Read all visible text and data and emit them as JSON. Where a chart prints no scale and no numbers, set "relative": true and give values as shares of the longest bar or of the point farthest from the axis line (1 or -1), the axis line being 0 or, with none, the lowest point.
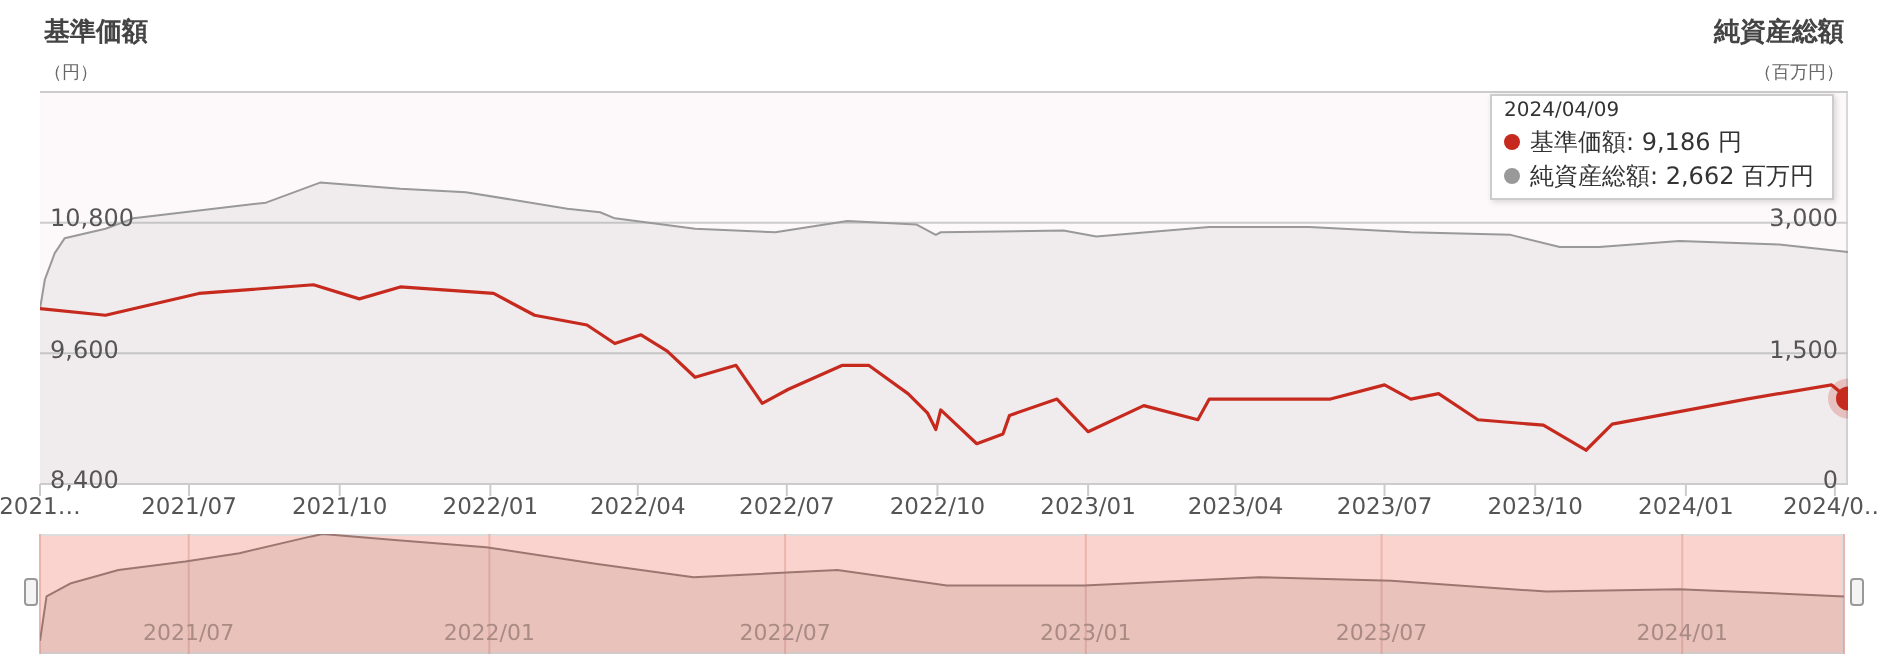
{
  "chart_data": [
    {
      "type": "line",
      "ylabel": "基準価額（円）",
      "y2label": "純資産総額（百万円）",
      "xlim": [
        "2021-04-01",
        "2024-04-09"
      ],
      "xticks": [
        {
          "value": "2021-04-01",
          "label": "2021…"
        },
        {
          "value": "2021-07-01",
          "label": "2021/07"
        },
        {
          "value": "2021-10-01",
          "label": "2021/10"
        },
        {
          "value": "2022-01-01",
          "label": "2022/01"
        },
        {
          "value": "2022-04-01",
          "label": "2022/04"
        },
        {
          "value": "2022-07-01",
          "label": "2022/07"
        },
        {
          "value": "2022-10-01",
          "label": "2022/10"
        },
        {
          "value": "2023-01-01",
          "label": "2023/01"
        },
        {
          "value": "2023-04-01",
          "label": "2023/04"
        },
        {
          "value": "2023-07-01",
          "label": "2023/07"
        },
        {
          "value": "2023-10-01",
          "label": "2023/10"
        },
        {
          "value": "2024-01-01",
          "label": "2024/01"
        },
        {
          "value": "2024-04-01",
          "label": "2024/0…"
        }
      ],
      "ylim": [
        8400,
        12000
      ],
      "yticks": [
        {
          "value": 8400,
          "label": "8,400"
        },
        {
          "value": 9600,
          "label": "9,600"
        },
        {
          "value": 10800,
          "label": "10,800"
        },
        {
          "value": 12000,
          "label": null
        }
      ],
      "y2lim": [
        0,
        4500
      ],
      "y2ticks": [
        {
          "value": 0,
          "label": "0"
        },
        {
          "value": 1500,
          "label": "1,500"
        },
        {
          "value": 3000,
          "label": "3,000"
        },
        {
          "value": 4500,
          "label": null
        }
      ],
      "grid": "y",
      "annotations": [
        "2024/04/09",
        "基準価額: 9,186 円",
        "純資産総額: 2,662 百万円"
      ],
      "series": [
        {
          "color": "#c62a1e",
          "x": [
            "2021-04-01",
            "2021-05-11",
            "2021-07-07",
            "2021-09-15",
            "2021-10-13",
            "2021-11-07",
            "2022-01-03",
            "2022-01-28",
            "2022-03-01",
            "2022-03-18",
            "2022-04-03",
            "2022-04-19",
            "2022-05-06",
            "2022-05-31",
            "2022-06-16",
            "2022-07-02",
            "2022-08-04",
            "2022-08-20",
            "2022-09-13",
            "2022-09-25",
            "2022-09-30",
            "2022-10-03",
            "2022-10-25",
            "2022-11-10",
            "2022-11-14",
            "2022-12-13",
            "2023-01-01",
            "2023-02-04",
            "2023-03-09",
            "2023-03-16",
            "2023-04-27",
            "2023-05-29",
            "2023-07-01",
            "2023-07-17",
            "2023-08-03",
            "2023-08-27",
            "2023-10-06",
            "2023-11-01",
            "2023-11-17",
            "2024-02-07",
            "2024-03-30",
            "2024-04-09"
          ],
          "values": [
            10010,
            9950,
            10150,
            10230,
            10100,
            10210,
            10150,
            9950,
            9860,
            9690,
            9770,
            9620,
            9380,
            9490,
            9140,
            9270,
            9490,
            9490,
            9230,
            9050,
            8900,
            9080,
            8770,
            8860,
            9030,
            9180,
            8880,
            9120,
            8990,
            9180,
            9180,
            9180,
            9310,
            9180,
            9230,
            8990,
            8940,
            8710,
            8950,
            9180,
            9310,
            9186
          ]
        },
        {
          "type": "area",
          "axis": "y2",
          "color": "#999999",
          "x": [
            "2021-04-01",
            "2021-04-04",
            "2021-04-10",
            "2021-04-16",
            "2021-05-11",
            "2021-05-28",
            "2021-08-17",
            "2021-09-19",
            "2021-11-07",
            "2021-12-17",
            "2022-02-17",
            "2022-03-09",
            "2022-03-18",
            "2022-05-06",
            "2022-06-24",
            "2022-08-07",
            "2022-09-18",
            "2022-09-30",
            "2022-10-03",
            "2022-12-17",
            "2023-01-06",
            "2023-03-16",
            "2023-05-16",
            "2023-07-17",
            "2023-09-16",
            "2023-10-16",
            "2023-11-09",
            "2023-12-28",
            "2024-02-27",
            "2024-04-09"
          ],
          "values": [
            2010,
            2350,
            2650,
            2820,
            2930,
            3050,
            3230,
            3460,
            3390,
            3350,
            3160,
            3120,
            3050,
            2930,
            2890,
            3020,
            2980,
            2860,
            2890,
            2910,
            2840,
            2950,
            2950,
            2890,
            2860,
            2720,
            2720,
            2790,
            2750,
            2662
          ]
        }
      ]
    },
    {
      "type": "area",
      "relative": true,
      "tick_labels": "x",
      "grid": "x",
      "xlim": [
        "2021-04-01",
        "2024-04-09"
      ],
      "xticks": [
        {
          "value": "2021-07-01",
          "label": "2021/07"
        },
        {
          "value": "2022-01-01",
          "label": "2022/01"
        },
        {
          "value": "2022-07-01",
          "label": "2022/07"
        },
        {
          "value": "2023-01-01",
          "label": "2023/01"
        },
        {
          "value": "2023-07-01",
          "label": "2023/07"
        },
        {
          "value": "2024-01-01",
          "label": "2024/01"
        }
      ],
      "series": [
        {
          "color": "#9c7670",
          "x": [
            "2021-04-01",
            "2021-04-05",
            "2021-04-20",
            "2021-05-19",
            "2021-06-29",
            "2021-08-01",
            "2021-09-14",
            "2021-09-21",
            "2021-11-04",
            "2021-12-30",
            "2022-03-08",
            "2022-05-06",
            "2022-08-02",
            "2022-10-08",
            "2022-12-31",
            "2023-04-17",
            "2023-07-07",
            "2023-10-10",
            "2023-12-30",
            "2024-04-09"
          ],
          "values": [
            0.11,
            0.48,
            0.59,
            0.7,
            0.77,
            0.84,
            0.98,
            1,
            0.95,
            0.89,
            0.75,
            0.64,
            0.7,
            0.57,
            0.57,
            0.64,
            0.61,
            0.52,
            0.54,
            0.48
          ]
        }
      ]
    }
  ]
}
